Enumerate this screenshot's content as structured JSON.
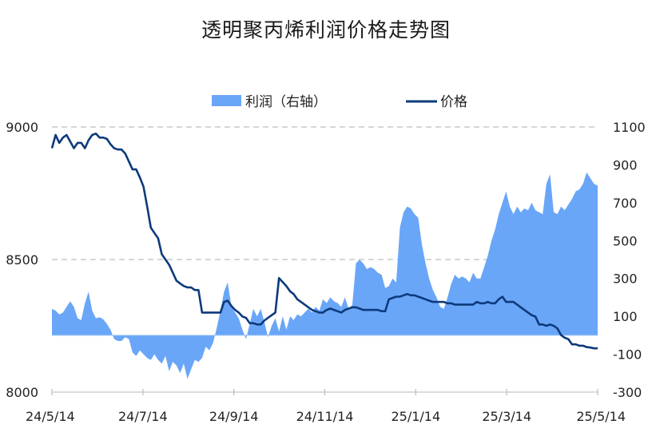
{
  "chart_data": {
    "type": "line",
    "title": "透明聚丙烯利润价格走势图",
    "x_tick_labels": [
      "24/5/14",
      "24/7/14",
      "24/9/14",
      "24/11/14",
      "25/1/14",
      "25/3/14",
      "25/5/14"
    ],
    "left_axis": {
      "ylim": [
        8000,
        9000
      ],
      "ticks": [
        "8000",
        "8500",
        "9000"
      ]
    },
    "right_axis": {
      "ylim": [
        -300,
        1100
      ],
      "ticks": [
        "-300",
        "-100",
        "100",
        "300",
        "500",
        "700",
        "900",
        "1100"
      ]
    },
    "legend": {
      "placement": "top-center"
    },
    "grid": "horizontal dashed at left-axis ticks",
    "colors": {
      "profit": "#6aa6f8",
      "price": "#0d3a7a"
    },
    "series": [
      {
        "name": "利润（右轴）",
        "chart": "area",
        "axis": "right",
        "points": [
          [
            0,
            140
          ],
          [
            1,
            130
          ],
          [
            2,
            110
          ],
          [
            3,
            120
          ],
          [
            4,
            150
          ],
          [
            5,
            180
          ],
          [
            6,
            150
          ],
          [
            7,
            90
          ],
          [
            8,
            80
          ],
          [
            9,
            170
          ],
          [
            10,
            230
          ],
          [
            11,
            130
          ],
          [
            12,
            90
          ],
          [
            13,
            95
          ],
          [
            14,
            85
          ],
          [
            15,
            60
          ],
          [
            16,
            30
          ],
          [
            17,
            -20
          ],
          [
            18,
            -30
          ],
          [
            19,
            -30
          ],
          [
            20,
            -10
          ],
          [
            21,
            -20
          ],
          [
            22,
            -90
          ],
          [
            23,
            -110
          ],
          [
            24,
            -80
          ],
          [
            25,
            -100
          ],
          [
            26,
            -120
          ],
          [
            27,
            -130
          ],
          [
            28,
            -100
          ],
          [
            29,
            -130
          ],
          [
            30,
            -150
          ],
          [
            31,
            -110
          ],
          [
            32,
            -190
          ],
          [
            33,
            -140
          ],
          [
            34,
            -160
          ],
          [
            35,
            -200
          ],
          [
            36,
            -150
          ],
          [
            37,
            -230
          ],
          [
            38,
            -180
          ],
          [
            39,
            -130
          ],
          [
            40,
            -140
          ],
          [
            41,
            -120
          ],
          [
            42,
            -60
          ],
          [
            43,
            -80
          ],
          [
            44,
            -40
          ],
          [
            45,
            40
          ],
          [
            46,
            130
          ],
          [
            47,
            230
          ],
          [
            48,
            280
          ],
          [
            49,
            150
          ],
          [
            50,
            120
          ],
          [
            51,
            90
          ],
          [
            52,
            30
          ],
          [
            53,
            -20
          ],
          [
            54,
            60
          ],
          [
            55,
            140
          ],
          [
            56,
            100
          ],
          [
            57,
            140
          ],
          [
            58,
            70
          ],
          [
            59,
            -10
          ],
          [
            60,
            50
          ],
          [
            61,
            90
          ],
          [
            62,
            20
          ],
          [
            63,
            100
          ],
          [
            64,
            30
          ],
          [
            65,
            100
          ],
          [
            66,
            80
          ],
          [
            67,
            110
          ],
          [
            68,
            100
          ],
          [
            69,
            120
          ],
          [
            70,
            140
          ],
          [
            71,
            120
          ],
          [
            72,
            150
          ],
          [
            73,
            130
          ],
          [
            74,
            190
          ],
          [
            75,
            170
          ],
          [
            76,
            200
          ],
          [
            77,
            180
          ],
          [
            78,
            170
          ],
          [
            79,
            150
          ],
          [
            80,
            200
          ],
          [
            81,
            140
          ],
          [
            82,
            160
          ],
          [
            83,
            380
          ],
          [
            84,
            400
          ],
          [
            85,
            380
          ],
          [
            86,
            350
          ],
          [
            87,
            360
          ],
          [
            88,
            350
          ],
          [
            89,
            330
          ],
          [
            90,
            320
          ],
          [
            91,
            250
          ],
          [
            92,
            260
          ],
          [
            93,
            300
          ],
          [
            94,
            280
          ],
          [
            95,
            570
          ],
          [
            96,
            650
          ],
          [
            97,
            680
          ],
          [
            98,
            670
          ],
          [
            99,
            640
          ],
          [
            100,
            620
          ],
          [
            101,
            480
          ],
          [
            102,
            380
          ],
          [
            103,
            300
          ],
          [
            104,
            240
          ],
          [
            105,
            200
          ],
          [
            106,
            150
          ],
          [
            107,
            140
          ],
          [
            108,
            200
          ],
          [
            109,
            270
          ],
          [
            110,
            320
          ],
          [
            111,
            300
          ],
          [
            112,
            310
          ],
          [
            113,
            300
          ],
          [
            114,
            280
          ],
          [
            115,
            330
          ],
          [
            116,
            300
          ],
          [
            117,
            300
          ],
          [
            118,
            360
          ],
          [
            119,
            420
          ],
          [
            120,
            500
          ],
          [
            121,
            560
          ],
          [
            122,
            640
          ],
          [
            123,
            700
          ],
          [
            124,
            760
          ],
          [
            125,
            680
          ],
          [
            126,
            640
          ],
          [
            127,
            680
          ],
          [
            128,
            650
          ],
          [
            129,
            670
          ],
          [
            130,
            660
          ],
          [
            131,
            700
          ],
          [
            132,
            660
          ],
          [
            133,
            650
          ],
          [
            134,
            640
          ],
          [
            135,
            800
          ],
          [
            136,
            850
          ],
          [
            137,
            650
          ],
          [
            138,
            640
          ],
          [
            139,
            680
          ],
          [
            140,
            660
          ],
          [
            141,
            690
          ],
          [
            142,
            720
          ],
          [
            143,
            760
          ],
          [
            144,
            770
          ],
          [
            145,
            800
          ],
          [
            146,
            860
          ],
          [
            147,
            830
          ],
          [
            148,
            800
          ],
          [
            149,
            790
          ]
        ]
      },
      {
        "name": "价格",
        "chart": "line",
        "axis": "left",
        "points": [
          [
            0,
            8920
          ],
          [
            1,
            8970
          ],
          [
            2,
            8940
          ],
          [
            3,
            8960
          ],
          [
            4,
            8970
          ],
          [
            5,
            8945
          ],
          [
            6,
            8920
          ],
          [
            7,
            8940
          ],
          [
            8,
            8940
          ],
          [
            9,
            8920
          ],
          [
            10,
            8950
          ],
          [
            11,
            8970
          ],
          [
            12,
            8975
          ],
          [
            13,
            8960
          ],
          [
            14,
            8960
          ],
          [
            15,
            8955
          ],
          [
            16,
            8935
          ],
          [
            17,
            8920
          ],
          [
            18,
            8915
          ],
          [
            19,
            8915
          ],
          [
            20,
            8900
          ],
          [
            21,
            8870
          ],
          [
            22,
            8840
          ],
          [
            23,
            8840
          ],
          [
            24,
            8810
          ],
          [
            25,
            8775
          ],
          [
            26,
            8700
          ],
          [
            27,
            8620
          ],
          [
            28,
            8600
          ],
          [
            29,
            8580
          ],
          [
            30,
            8520
          ],
          [
            31,
            8500
          ],
          [
            32,
            8480
          ],
          [
            33,
            8450
          ],
          [
            34,
            8420
          ],
          [
            35,
            8410
          ],
          [
            36,
            8400
          ],
          [
            37,
            8395
          ],
          [
            38,
            8395
          ],
          [
            39,
            8385
          ],
          [
            40,
            8385
          ],
          [
            41,
            8300
          ],
          [
            42,
            8300
          ],
          [
            43,
            8300
          ],
          [
            44,
            8300
          ],
          [
            45,
            8300
          ],
          [
            46,
            8300
          ],
          [
            47,
            8340
          ],
          [
            48,
            8345
          ],
          [
            49,
            8325
          ],
          [
            50,
            8310
          ],
          [
            51,
            8300
          ],
          [
            52,
            8285
          ],
          [
            53,
            8280
          ],
          [
            54,
            8260
          ],
          [
            55,
            8260
          ],
          [
            56,
            8255
          ],
          [
            57,
            8255
          ],
          [
            58,
            8270
          ],
          [
            59,
            8280
          ],
          [
            60,
            8290
          ],
          [
            61,
            8300
          ],
          [
            62,
            8430
          ],
          [
            63,
            8415
          ],
          [
            64,
            8400
          ],
          [
            65,
            8380
          ],
          [
            66,
            8370
          ],
          [
            67,
            8350
          ],
          [
            68,
            8340
          ],
          [
            69,
            8330
          ],
          [
            70,
            8320
          ],
          [
            71,
            8310
          ],
          [
            72,
            8305
          ],
          [
            73,
            8300
          ],
          [
            74,
            8300
          ],
          [
            75,
            8310
          ],
          [
            76,
            8315
          ],
          [
            77,
            8310
          ],
          [
            78,
            8305
          ],
          [
            79,
            8300
          ],
          [
            80,
            8310
          ],
          [
            81,
            8315
          ],
          [
            82,
            8320
          ],
          [
            83,
            8320
          ],
          [
            84,
            8315
          ],
          [
            85,
            8310
          ],
          [
            86,
            8310
          ],
          [
            87,
            8310
          ],
          [
            88,
            8310
          ],
          [
            89,
            8310
          ],
          [
            90,
            8305
          ],
          [
            91,
            8305
          ],
          [
            92,
            8350
          ],
          [
            93,
            8355
          ],
          [
            94,
            8360
          ],
          [
            95,
            8360
          ],
          [
            96,
            8365
          ],
          [
            97,
            8370
          ],
          [
            98,
            8365
          ],
          [
            99,
            8365
          ],
          [
            100,
            8360
          ],
          [
            101,
            8355
          ],
          [
            102,
            8350
          ],
          [
            103,
            8345
          ],
          [
            104,
            8340
          ],
          [
            105,
            8340
          ],
          [
            106,
            8340
          ],
          [
            107,
            8340
          ],
          [
            108,
            8335
          ],
          [
            109,
            8335
          ],
          [
            110,
            8330
          ],
          [
            111,
            8330
          ],
          [
            112,
            8330
          ],
          [
            113,
            8330
          ],
          [
            114,
            8330
          ],
          [
            115,
            8330
          ],
          [
            116,
            8340
          ],
          [
            117,
            8335
          ],
          [
            118,
            8335
          ],
          [
            119,
            8340
          ],
          [
            120,
            8335
          ],
          [
            121,
            8335
          ],
          [
            122,
            8350
          ],
          [
            123,
            8360
          ],
          [
            124,
            8340
          ],
          [
            125,
            8340
          ],
          [
            126,
            8340
          ],
          [
            127,
            8330
          ],
          [
            128,
            8320
          ],
          [
            129,
            8310
          ],
          [
            130,
            8300
          ],
          [
            131,
            8290
          ],
          [
            132,
            8285
          ],
          [
            133,
            8255
          ],
          [
            134,
            8255
          ],
          [
            135,
            8250
          ],
          [
            136,
            8255
          ],
          [
            137,
            8250
          ],
          [
            138,
            8240
          ],
          [
            139,
            8215
          ],
          [
            140,
            8205
          ],
          [
            141,
            8200
          ],
          [
            142,
            8180
          ],
          [
            143,
            8180
          ],
          [
            144,
            8175
          ],
          [
            145,
            8175
          ],
          [
            146,
            8170
          ],
          [
            147,
            8168
          ],
          [
            148,
            8165
          ],
          [
            149,
            8165
          ]
        ]
      }
    ]
  }
}
